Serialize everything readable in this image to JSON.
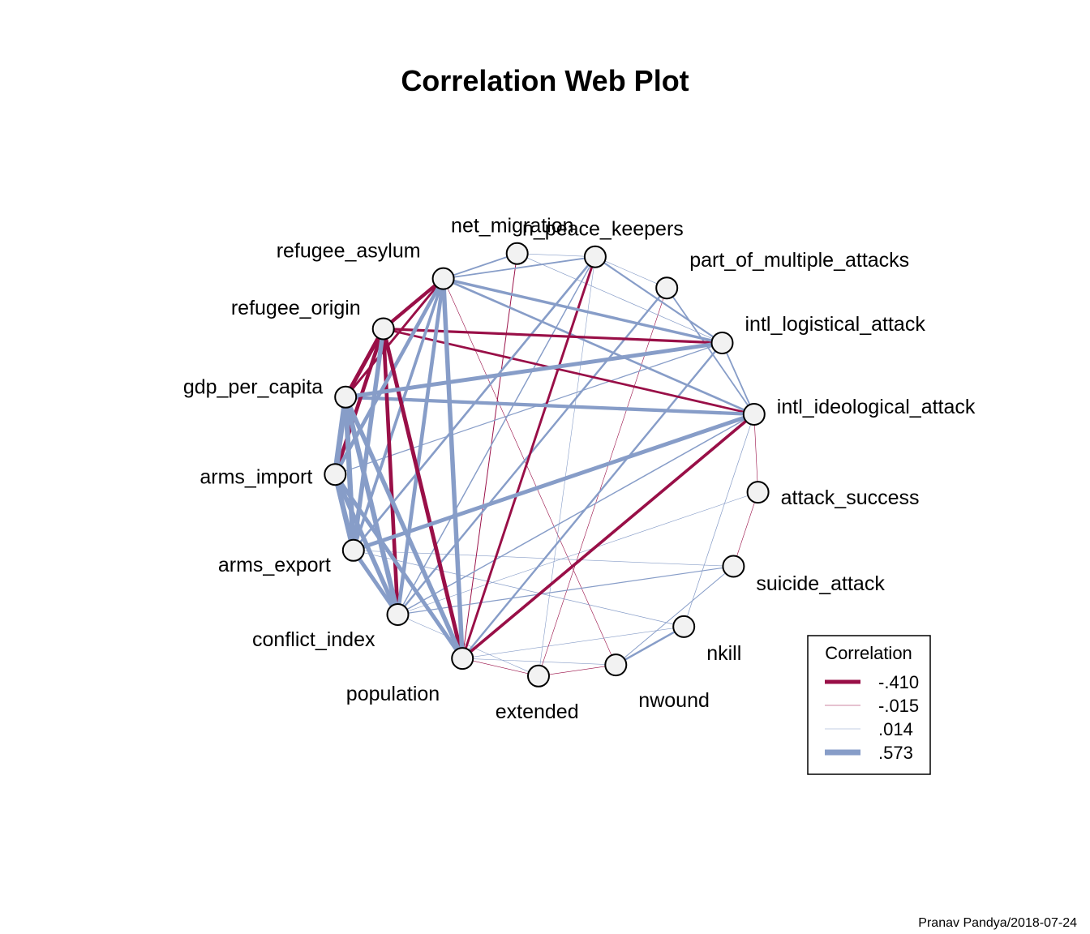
{
  "chart_data": {
    "type": "network",
    "title": "Correlation Web Plot",
    "nodes": [
      "n_peace_keepers",
      "part_of_multiple_attacks",
      "intl_logistical_attack",
      "intl_ideological_attack",
      "attack_success",
      "suicide_attack",
      "nkill",
      "nwound",
      "extended",
      "population",
      "conflict_index",
      "arms_export",
      "arms_import",
      "gdp_per_capita",
      "refugee_origin",
      "refugee_asylum",
      "net_migration"
    ],
    "edges": [
      {
        "from": "refugee_origin",
        "to": "refugee_asylum",
        "r": -0.35
      },
      {
        "from": "refugee_origin",
        "to": "gdp_per_capita",
        "r": -0.41
      },
      {
        "from": "refugee_origin",
        "to": "arms_import",
        "r": -0.38
      },
      {
        "from": "refugee_origin",
        "to": "conflict_index",
        "r": -0.38
      },
      {
        "from": "refugee_origin",
        "to": "population",
        "r": -0.4
      },
      {
        "from": "refugee_origin",
        "to": "intl_logistical_attack",
        "r": -0.26
      },
      {
        "from": "refugee_origin",
        "to": "intl_ideological_attack",
        "r": -0.22
      },
      {
        "from": "refugee_origin",
        "to": "arms_export",
        "r": 0.45
      },
      {
        "from": "population",
        "to": "n_peace_keepers",
        "r": -0.24
      },
      {
        "from": "population",
        "to": "intl_ideological_attack",
        "r": -0.3
      },
      {
        "from": "gdp_per_capita",
        "to": "refugee_asylum",
        "r": -0.24
      },
      {
        "from": "gdp_per_capita",
        "to": "arms_import",
        "r": 0.57
      },
      {
        "from": "gdp_per_capita",
        "to": "arms_export",
        "r": 0.52
      },
      {
        "from": "gdp_per_capita",
        "to": "conflict_index",
        "r": 0.5
      },
      {
        "from": "gdp_per_capita",
        "to": "population",
        "r": 0.45
      },
      {
        "from": "gdp_per_capita",
        "to": "intl_logistical_attack",
        "r": 0.4
      },
      {
        "from": "gdp_per_capita",
        "to": "intl_ideological_attack",
        "r": 0.35
      },
      {
        "from": "arms_import",
        "to": "arms_export",
        "r": 0.52
      },
      {
        "from": "arms_import",
        "to": "conflict_index",
        "r": 0.45
      },
      {
        "from": "arms_import",
        "to": "population",
        "r": 0.4
      },
      {
        "from": "arms_import",
        "to": "refugee_asylum",
        "r": 0.38
      },
      {
        "from": "arms_export",
        "to": "conflict_index",
        "r": 0.4
      },
      {
        "from": "arms_export",
        "to": "intl_ideological_attack",
        "r": 0.4
      },
      {
        "from": "arms_export",
        "to": "refugee_asylum",
        "r": 0.3
      },
      {
        "from": "refugee_asylum",
        "to": "population",
        "r": 0.45
      },
      {
        "from": "refugee_asylum",
        "to": "conflict_index",
        "r": 0.38
      },
      {
        "from": "refugee_asylum",
        "to": "intl_logistical_attack",
        "r": 0.28
      },
      {
        "from": "refugee_asylum",
        "to": "intl_ideological_attack",
        "r": 0.22
      },
      {
        "from": "refugee_asylum",
        "to": "n_peace_keepers",
        "r": 0.15
      },
      {
        "from": "refugee_asylum",
        "to": "net_migration",
        "r": 0.15
      },
      {
        "from": "net_migration",
        "to": "n_peace_keepers",
        "r": 0.02
      },
      {
        "from": "net_migration",
        "to": "population",
        "r": -0.08
      },
      {
        "from": "net_migration",
        "to": "intl_logistical_attack",
        "r": 0.06
      },
      {
        "from": "n_peace_keepers",
        "to": "intl_logistical_attack",
        "r": 0.18
      },
      {
        "from": "n_peace_keepers",
        "to": "part_of_multiple_attacks",
        "r": 0.03
      },
      {
        "from": "n_peace_keepers",
        "to": "arms_export",
        "r": 0.22
      },
      {
        "from": "n_peace_keepers",
        "to": "conflict_index",
        "r": 0.12
      },
      {
        "from": "n_peace_keepers",
        "to": "extended",
        "r": 0.04
      },
      {
        "from": "part_of_multiple_attacks",
        "to": "intl_ideological_attack",
        "r": 0.15
      },
      {
        "from": "part_of_multiple_attacks",
        "to": "conflict_index",
        "r": 0.2
      },
      {
        "from": "part_of_multiple_attacks",
        "to": "extended",
        "r": -0.05
      },
      {
        "from": "intl_logistical_attack",
        "to": "intl_ideological_attack",
        "r": 0.15
      },
      {
        "from": "intl_logistical_attack",
        "to": "population",
        "r": 0.2
      },
      {
        "from": "intl_logistical_attack",
        "to": "arms_import",
        "r": 0.1
      },
      {
        "from": "intl_ideological_attack",
        "to": "nkill",
        "r": 0.06
      },
      {
        "from": "intl_ideological_attack",
        "to": "conflict_index",
        "r": 0.12
      },
      {
        "from": "intl_ideological_attack",
        "to": "attack_success",
        "r": -0.03
      },
      {
        "from": "attack_success",
        "to": "suicide_attack",
        "r": -0.04
      },
      {
        "from": "attack_success",
        "to": "conflict_index",
        "r": 0.04
      },
      {
        "from": "suicide_attack",
        "to": "nwound",
        "r": 0.08
      },
      {
        "from": "suicide_attack",
        "to": "conflict_index",
        "r": 0.1
      },
      {
        "from": "suicide_attack",
        "to": "arms_export",
        "r": 0.05
      },
      {
        "from": "nkill",
        "to": "nwound",
        "r": 0.2
      },
      {
        "from": "nkill",
        "to": "population",
        "r": 0.04
      },
      {
        "from": "nkill",
        "to": "arms_export",
        "r": 0.06
      },
      {
        "from": "nwound",
        "to": "extended",
        "r": -0.03
      },
      {
        "from": "nwound",
        "to": "population",
        "r": 0.04
      },
      {
        "from": "extended",
        "to": "population",
        "r": -0.04
      },
      {
        "from": "extended",
        "to": "conflict_index",
        "r": 0.04
      },
      {
        "from": "nwound",
        "to": "refugee_asylum",
        "r": -0.03
      }
    ],
    "legend": {
      "title": "Correlation",
      "entries": [
        {
          "label": "-.410",
          "value": -0.41
        },
        {
          "label": "-.015",
          "value": -0.015
        },
        {
          "label": ".014",
          "value": 0.014
        },
        {
          "label": ".573",
          "value": 0.573
        }
      ],
      "position": "bottom-right"
    },
    "colors": {
      "negative": "#990F47",
      "positive": "#879DC8",
      "node_fill": "#F2F2F2"
    },
    "credit": "Pranav Pandya/2018-07-24"
  }
}
